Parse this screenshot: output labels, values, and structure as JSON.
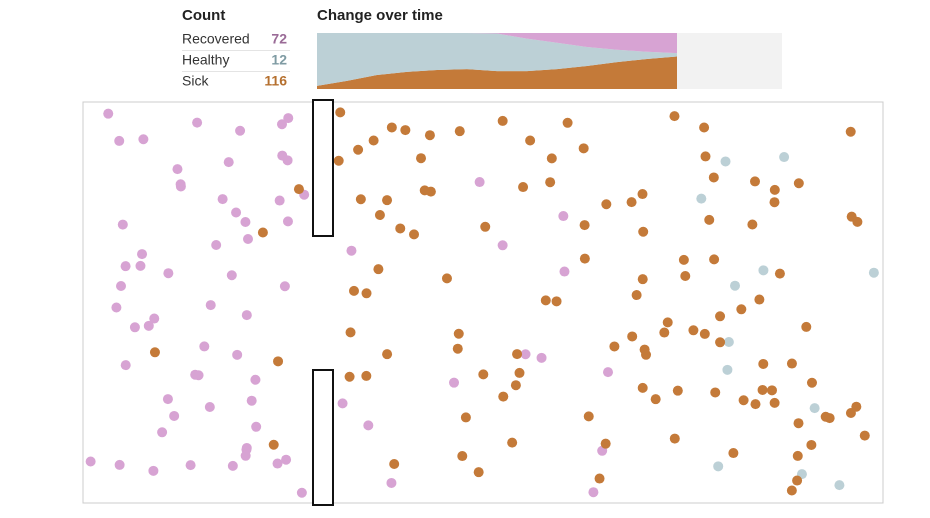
{
  "count": {
    "title": "Count",
    "rows": [
      {
        "label": "Recovered",
        "value": 72,
        "color": "#9a6b97"
      },
      {
        "label": "Healthy",
        "value": 12,
        "color": "#7f9ba3"
      },
      {
        "label": "Sick",
        "value": 116,
        "color": "#b5702f"
      }
    ]
  },
  "chart_data": {
    "type": "area",
    "stacked": true,
    "title": "Change over time",
    "categories": [
      null,
      null,
      null,
      null,
      null,
      null,
      null,
      null,
      null,
      null,
      null,
      null,
      null
    ],
    "ylim": [
      0,
      200
    ],
    "series": [
      {
        "name": "Sick",
        "color": "#c47a39",
        "values": [
          11,
          29,
          50,
          61,
          68,
          71,
          64,
          64,
          71,
          82,
          96,
          107,
          116
        ]
      },
      {
        "name": "Healthy",
        "color": "#bcd0d6",
        "values": [
          189,
          171,
          150,
          139,
          132,
          129,
          134,
          116,
          94,
          68,
          44,
          26,
          12
        ]
      },
      {
        "name": "Recovered",
        "color": "#d7a3d3",
        "values": [
          0,
          0,
          0,
          0,
          0,
          0,
          2,
          20,
          35,
          50,
          60,
          67,
          72
        ]
      }
    ]
  }
}
